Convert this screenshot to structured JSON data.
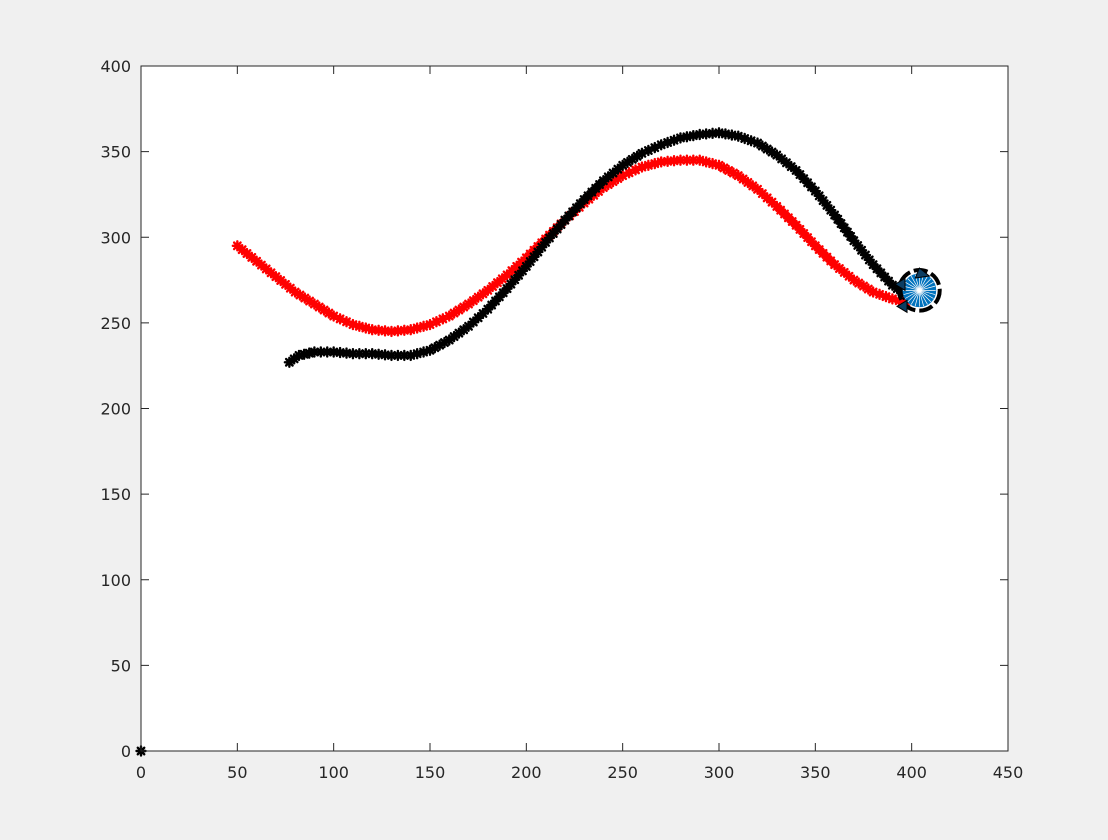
{
  "chart_data": {
    "type": "scatter",
    "title": "",
    "xlabel": "",
    "ylabel": "",
    "xlim": [
      0,
      450
    ],
    "ylim": [
      0,
      400
    ],
    "xticks": [
      0,
      50,
      100,
      150,
      200,
      250,
      300,
      350,
      400,
      450
    ],
    "yticks": [
      0,
      50,
      100,
      150,
      200,
      250,
      300,
      350,
      400
    ],
    "xtick_labels": [
      "0",
      "50",
      "100",
      "150",
      "200",
      "250",
      "300",
      "350",
      "400",
      "450"
    ],
    "ytick_labels": [
      "0",
      "50",
      "100",
      "150",
      "200",
      "250",
      "300",
      "350",
      "400"
    ],
    "grid": false,
    "box": true,
    "series": [
      {
        "marker": "*",
        "color": "#ff0000",
        "x": [
          50,
          60,
          70,
          80,
          90,
          100,
          110,
          120,
          130,
          140,
          150,
          160,
          170,
          180,
          190,
          200,
          210,
          220,
          230,
          240,
          250,
          260,
          270,
          280,
          290,
          300,
          310,
          320,
          330,
          340,
          350,
          360,
          370,
          380,
          390,
          397
        ],
        "y": [
          295,
          286,
          277,
          268,
          261,
          254,
          249,
          246,
          245,
          246,
          249,
          254,
          261,
          269,
          278,
          288,
          299,
          310,
          320,
          329,
          336,
          341,
          344,
          345,
          345,
          342,
          336,
          328,
          318,
          307,
          295,
          284,
          275,
          268,
          264,
          262
        ]
      },
      {
        "marker": "*",
        "color": "#000000",
        "x": [
          77,
          82,
          90,
          100,
          110,
          120,
          130,
          140,
          150,
          160,
          170,
          180,
          190,
          200,
          210,
          220,
          230,
          240,
          250,
          260,
          270,
          280,
          290,
          300,
          310,
          320,
          330,
          340,
          350,
          360,
          370,
          380,
          390,
          400
        ],
        "y": [
          227,
          231,
          233,
          233,
          232,
          232,
          231,
          231,
          234,
          240,
          248,
          258,
          270,
          283,
          297,
          310,
          322,
          333,
          342,
          349,
          354,
          358,
          360,
          361,
          359,
          355,
          348,
          339,
          327,
          313,
          298,
          284,
          272,
          264
        ]
      },
      {
        "marker": "*",
        "color": "#000000",
        "x": [
          0
        ],
        "y": [
          0
        ]
      }
    ],
    "annotations": [
      {
        "type": "robot-circle",
        "color": "#0072bd",
        "x": 404,
        "y": 269,
        "radius_data": 8
      }
    ]
  }
}
